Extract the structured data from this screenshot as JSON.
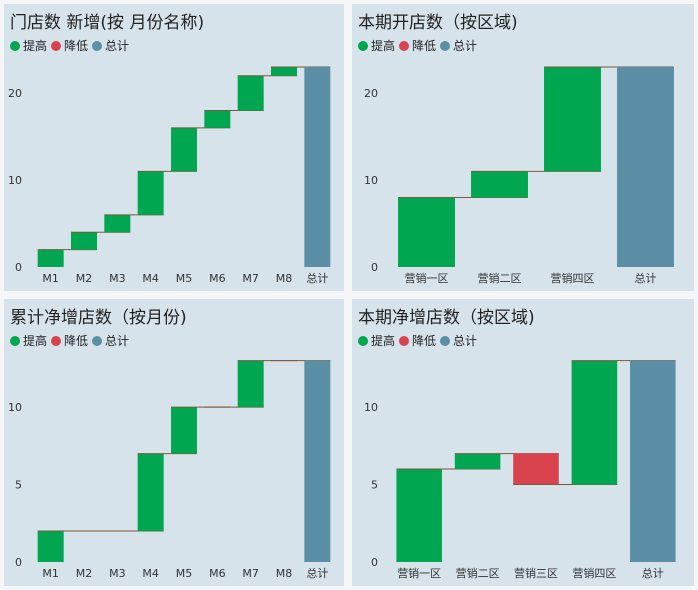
{
  "colors": {
    "increase": "#00a650",
    "decrease": "#d9434e",
    "total": "#5b8fa6",
    "connector": "#7a5a3c"
  },
  "legend": {
    "increase_label": "提高",
    "decrease_label": "降低",
    "total_label": "总计"
  },
  "chart_data": [
    {
      "type": "waterfall",
      "title": "门店数 新增(按 月份名称)",
      "categories": [
        "M1",
        "M2",
        "M3",
        "M4",
        "M5",
        "M6",
        "M7",
        "M8"
      ],
      "values": [
        2,
        2,
        2,
        5,
        5,
        2,
        4,
        1
      ],
      "total_label": "总计",
      "total": 23,
      "y_ticks": [
        0,
        10,
        20
      ],
      "ylim": [
        0,
        24.5
      ]
    },
    {
      "type": "waterfall",
      "title": "本期开店数（按区域)",
      "categories": [
        "营销一区",
        "营销二区",
        "营销四区"
      ],
      "values": [
        8,
        3,
        12
      ],
      "total_label": "总计",
      "total": 23,
      "y_ticks": [
        0,
        10,
        20
      ],
      "ylim": [
        0,
        24.5
      ]
    },
    {
      "type": "waterfall",
      "title": "累计净增店数（按月份)",
      "categories": [
        "M1",
        "M2",
        "M3",
        "M4",
        "M5",
        "M6",
        "M7",
        "M8"
      ],
      "values": [
        2,
        0,
        0,
        5,
        3,
        0,
        3,
        0
      ],
      "total_label": "总计",
      "total": 13,
      "y_ticks": [
        0,
        5,
        10
      ],
      "ylim": [
        0,
        13.75
      ]
    },
    {
      "type": "waterfall",
      "title": "本期净增店数（按区域)",
      "categories": [
        "营销一区",
        "营销二区",
        "营销三区",
        "营销四区"
      ],
      "values": [
        6,
        1,
        -2,
        8
      ],
      "total_label": "总计",
      "total": 13,
      "y_ticks": [
        0,
        5,
        10
      ],
      "ylim": [
        0,
        13.75
      ]
    }
  ]
}
